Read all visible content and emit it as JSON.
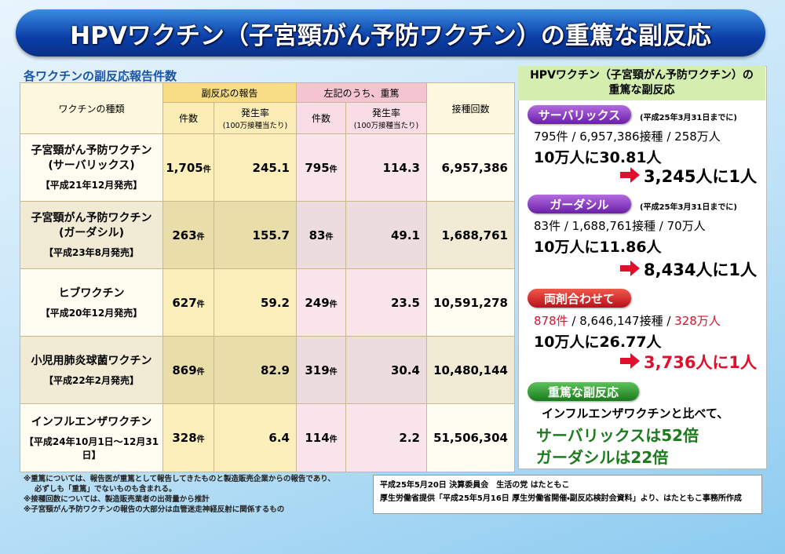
{
  "header": {
    "title": "HPVワクチン（子宮頸がん予防ワクチン）の重篤な副反応"
  },
  "table": {
    "caption": "各ワクチンの副反応報告件数",
    "headers": {
      "vaccine": "ワクチンの種類",
      "reports": "副反応の報告",
      "serious": "左記のうち、重篤",
      "doses": "接種回数",
      "count": "件数",
      "rate": "発生率",
      "rate_note": "(100万接種当たり)"
    },
    "unit": "件",
    "rows": [
      {
        "name": [
          "子宮頸がん予防ワクチン",
          "(サーバリックス)"
        ],
        "release": "【平成21年12月発売】",
        "reports": "1,705",
        "report_rate": "245.1",
        "serious": "795",
        "serious_rate": "114.3",
        "doses": "6,957,386"
      },
      {
        "name": [
          "子宮頸がん予防ワクチン",
          "(ガーダシル)"
        ],
        "release": "【平成23年8月発売】",
        "reports": "263",
        "report_rate": "155.7",
        "serious": "83",
        "serious_rate": "49.1",
        "doses": "1,688,761"
      },
      {
        "name": [
          "ヒブワクチン"
        ],
        "release": "【平成20年12月発売】",
        "reports": "627",
        "report_rate": "59.2",
        "serious": "249",
        "serious_rate": "23.5",
        "doses": "10,591,278"
      },
      {
        "name": [
          "小児用肺炎球菌ワクチン"
        ],
        "release": "【平成22年2月発売】",
        "reports": "869",
        "report_rate": "82.9",
        "serious": "319",
        "serious_rate": "30.4",
        "doses": "10,480,144"
      },
      {
        "name": [
          "インフルエンザワクチン"
        ],
        "release": "【平成24年10月1日〜12月31日】",
        "reports": "328",
        "report_rate": "6.4",
        "serious": "114",
        "serious_rate": "2.2",
        "doses": "51,506,304"
      }
    ]
  },
  "notes": [
    "※重篤については、報告医が重篤として報告してきたものと製造販売企業からの報告であり、",
    "必ずしも「重篤」でないものも含まれる。",
    "※接種回数については、製造販売業者の出荷量から推計",
    "※子宮頸がん予防ワクチンの報告の大部分は血管迷走神経反射に関係するもの"
  ],
  "panel": {
    "title": [
      "HPVワクチン（子宮頸がん予防ワクチン）の",
      "重篤な副反応"
    ],
    "sections": [
      {
        "badge": "サーバリックス",
        "date": "(平成25年3月31日までに)",
        "line": [
          "795件 / 6,957,386接種 / 258万人"
        ],
        "rate": "10万人に30.81人",
        "result": "3,245人に1人"
      },
      {
        "badge": "ガーダシル",
        "date": "(平成25年3月31日までに)",
        "line": [
          "83件 / 1,688,761接種 / 70万人"
        ],
        "rate": "10万人に11.86人",
        "result": "8,434人に1人"
      },
      {
        "badge": "両剤合わせて",
        "line": [
          "878件",
          " / 8,646,147接種 / ",
          "328万人"
        ],
        "rate": "10万人に26.77人",
        "result": "3,736人に1人"
      }
    ],
    "serious": {
      "badge": "重篤な副反応",
      "text": "インフルエンザワクチンと比べて、",
      "lines": [
        "サーバリックスは52倍",
        "ガーダシルは22倍"
      ]
    }
  },
  "source": [
    "平成25年5月20日 決算委員会　生活の党 はたともこ",
    "厚生労働省提供「平成25年5月16日 厚生労働省開催・副反応検討会資料」より、はたともこ事務所作成"
  ]
}
